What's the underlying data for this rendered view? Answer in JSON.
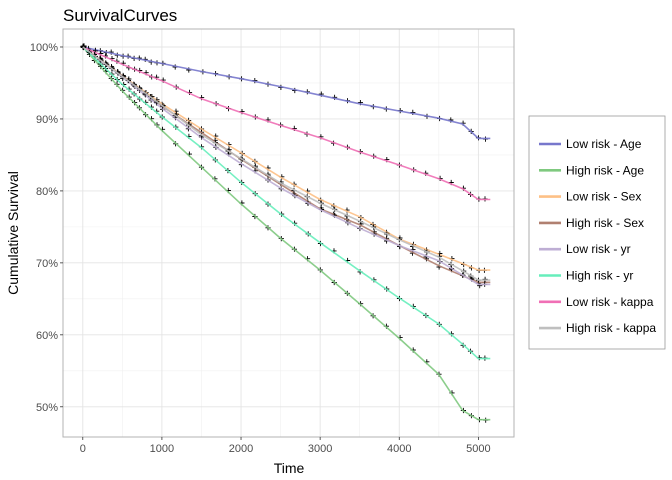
{
  "chart_data": {
    "type": "line",
    "title": "SurvivalCurves",
    "xlabel": "Time",
    "ylabel": "Cumulative Survival",
    "xlim": [
      -250,
      5450
    ],
    "ylim": [
      45.8,
      102.5
    ],
    "x_ticks": [
      0,
      1000,
      2000,
      3000,
      4000,
      5000
    ],
    "x_tick_labels": [
      "0",
      "1000",
      "2000",
      "3000",
      "4000",
      "5000"
    ],
    "y_ticks": [
      50,
      60,
      70,
      80,
      90,
      100
    ],
    "y_tick_labels": [
      "50%",
      "60%",
      "70%",
      "80%",
      "90%",
      "100%"
    ],
    "grid": true,
    "legend_position": "right",
    "series": [
      {
        "name": "Low risk - Age",
        "color": "#7777cc",
        "x": [
          0,
          500,
          1000,
          1500,
          2000,
          2500,
          3000,
          3500,
          4000,
          4500,
          4800,
          5000,
          5150
        ],
        "y": [
          100,
          98.8,
          97.7,
          96.6,
          95.6,
          94.5,
          93.3,
          92.1,
          91.1,
          90.1,
          89.3,
          87.3,
          87.3
        ]
      },
      {
        "name": "High risk - Age",
        "color": "#7fc97f",
        "x": [
          0,
          500,
          1000,
          1500,
          2000,
          2500,
          3000,
          3500,
          4000,
          4500,
          4800,
          5000,
          5150
        ],
        "y": [
          100,
          93.9,
          88.4,
          83.3,
          78.2,
          73.4,
          69.0,
          64.3,
          59.5,
          54.5,
          49.5,
          48.2,
          48.2
        ]
      },
      {
        "name": "Low risk - Sex",
        "color": "#fdc086",
        "x": [
          0,
          500,
          1000,
          1500,
          2000,
          2500,
          3000,
          3500,
          4000,
          4500,
          4800,
          5000,
          5150
        ],
        "y": [
          100,
          96.0,
          92.1,
          88.6,
          85.3,
          81.9,
          78.8,
          76.4,
          73.3,
          71.2,
          69.9,
          69.0,
          69.0
        ]
      },
      {
        "name": "High risk - Sex",
        "color": "#b08070",
        "x": [
          0,
          500,
          1000,
          1500,
          2000,
          2500,
          3000,
          3500,
          4000,
          4500,
          4800,
          5000,
          5150
        ],
        "y": [
          100,
          96.0,
          91.8,
          88.1,
          84.4,
          80.9,
          77.5,
          75.3,
          72.4,
          69.6,
          68.2,
          67.3,
          67.3
        ]
      },
      {
        "name": "Low risk - yr",
        "color": "#beaed4",
        "x": [
          0,
          500,
          1000,
          1500,
          2000,
          2500,
          3000,
          3500,
          4000,
          4500,
          4800,
          5000,
          5150
        ],
        "y": [
          100,
          95.8,
          91.5,
          87.4,
          83.8,
          80.4,
          77.4,
          74.8,
          72.4,
          70.3,
          68.3,
          67.0,
          67.0
        ]
      },
      {
        "name": "High risk - yr",
        "color": "#66eebb",
        "x": [
          0,
          500,
          1000,
          1500,
          2000,
          2500,
          3000,
          3500,
          4000,
          4500,
          4800,
          5000,
          5150
        ],
        "y": [
          100,
          94.8,
          90.3,
          86.0,
          81.2,
          76.8,
          72.8,
          68.9,
          65.1,
          61.5,
          58.7,
          56.7,
          56.7
        ]
      },
      {
        "name": "Low risk - kappa",
        "color": "#f06fb5",
        "x": [
          0,
          500,
          1000,
          1500,
          2000,
          2500,
          3000,
          3500,
          4000,
          4500,
          4800,
          5000,
          5150
        ],
        "y": [
          100,
          97.6,
          95.3,
          92.8,
          90.9,
          89.1,
          87.4,
          85.4,
          83.6,
          81.7,
          80.3,
          78.8,
          78.8
        ]
      },
      {
        "name": "High risk - kappa",
        "color": "#bfbfbf",
        "x": [
          0,
          500,
          1000,
          1500,
          2000,
          2500,
          3000,
          3500,
          4000,
          4500,
          4800,
          5000,
          5150
        ],
        "y": [
          100,
          95.9,
          91.9,
          87.8,
          84.5,
          81.1,
          78.3,
          75.8,
          73.2,
          70.8,
          68.9,
          67.6,
          67.6
        ]
      }
    ]
  }
}
